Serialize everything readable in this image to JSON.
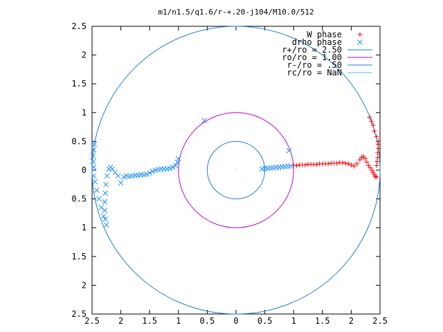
{
  "chart_data": {
    "type": "scatter",
    "title": "m1/n1.5/q1.6/r-+.20-j104/M10.0/512",
    "xlim": [
      -2.5,
      2.5
    ],
    "ylim": [
      -2.5,
      2.5
    ],
    "x_ticks": [
      -2.5,
      -2,
      -1.5,
      -1,
      -0.5,
      0,
      0.5,
      1,
      1.5,
      2,
      2.5
    ],
    "x_tick_labels": [
      "2.5",
      "2",
      "1.5",
      "1",
      "0.5",
      "0",
      "0.5",
      "1",
      "1.5",
      "2",
      "2.5"
    ],
    "y_ticks": [
      2.5,
      2,
      1.5,
      1,
      0.5,
      0,
      -0.5,
      -1,
      -1.5,
      -2,
      -2.5
    ],
    "y_tick_labels": [
      "2.5",
      "2",
      "1.5",
      "1",
      "0.5",
      "0",
      "0.5",
      "1",
      "1.5",
      "2",
      "2.5"
    ],
    "legend_position": "top-right",
    "series": [
      {
        "name": "W phase",
        "marker": "plus",
        "color": "#ff0000",
        "points": [
          [
            1.0,
            0.08
          ],
          [
            1.05,
            0.08
          ],
          [
            1.1,
            0.09
          ],
          [
            1.15,
            0.09
          ],
          [
            1.2,
            0.09
          ],
          [
            1.25,
            0.1
          ],
          [
            1.3,
            0.1
          ],
          [
            1.35,
            0.1
          ],
          [
            1.4,
            0.1
          ],
          [
            1.45,
            0.11
          ],
          [
            1.5,
            0.11
          ],
          [
            1.55,
            0.11
          ],
          [
            1.6,
            0.11
          ],
          [
            1.65,
            0.12
          ],
          [
            1.7,
            0.12
          ],
          [
            1.75,
            0.12
          ],
          [
            1.8,
            0.13
          ],
          [
            1.85,
            0.13
          ],
          [
            1.9,
            0.12
          ],
          [
            1.95,
            0.11
          ],
          [
            2.0,
            0.09
          ],
          [
            2.05,
            0.07
          ],
          [
            2.1,
            0.11
          ],
          [
            2.15,
            0.18
          ],
          [
            2.18,
            0.22
          ],
          [
            2.21,
            0.24
          ],
          [
            2.24,
            0.2
          ],
          [
            2.27,
            0.14
          ],
          [
            2.3,
            0.08
          ],
          [
            2.33,
            0.04
          ],
          [
            2.36,
            0.0
          ],
          [
            2.38,
            -0.04
          ],
          [
            2.4,
            -0.08
          ],
          [
            2.42,
            -0.11
          ],
          [
            2.44,
            -0.12
          ],
          [
            2.44,
            0.08
          ],
          [
            2.45,
            0.15
          ],
          [
            2.46,
            0.22
          ],
          [
            2.46,
            0.3
          ],
          [
            2.47,
            0.38
          ],
          [
            2.47,
            0.45
          ],
          [
            2.47,
            0.5
          ],
          [
            2.44,
            0.58
          ],
          [
            2.4,
            0.68
          ],
          [
            2.38,
            0.78
          ],
          [
            2.35,
            0.85
          ],
          [
            2.32,
            0.92
          ]
        ]
      },
      {
        "name": "drho phase",
        "marker": "cross",
        "color": "#1e90ff",
        "points": [
          [
            0.45,
            0.02
          ],
          [
            0.5,
            0.03
          ],
          [
            0.55,
            0.03
          ],
          [
            0.6,
            0.04
          ],
          [
            0.65,
            0.04
          ],
          [
            0.7,
            0.05
          ],
          [
            0.75,
            0.05
          ],
          [
            0.8,
            0.06
          ],
          [
            0.85,
            0.06
          ],
          [
            0.9,
            0.07
          ],
          [
            0.95,
            0.07
          ],
          [
            0.92,
            0.34
          ],
          [
            -0.55,
            0.86
          ],
          [
            -1.0,
            0.2
          ],
          [
            -1.02,
            0.14
          ],
          [
            -1.05,
            0.08
          ],
          [
            -1.1,
            0.05
          ],
          [
            -1.15,
            0.03
          ],
          [
            -1.2,
            0.02
          ],
          [
            -1.25,
            0.02
          ],
          [
            -1.3,
            0.02
          ],
          [
            -1.35,
            0.01
          ],
          [
            -1.4,
            0.0
          ],
          [
            -1.45,
            -0.02
          ],
          [
            -1.5,
            -0.05
          ],
          [
            -1.55,
            -0.07
          ],
          [
            -1.6,
            -0.08
          ],
          [
            -1.65,
            -0.08
          ],
          [
            -1.7,
            -0.09
          ],
          [
            -1.75,
            -0.09
          ],
          [
            -1.8,
            -0.1
          ],
          [
            -1.85,
            -0.11
          ],
          [
            -1.9,
            -0.1
          ],
          [
            -1.95,
            -0.12
          ],
          [
            -2.0,
            -0.22
          ],
          [
            -2.05,
            -0.1
          ],
          [
            -2.1,
            -0.04
          ],
          [
            -2.15,
            0.02
          ],
          [
            -2.18,
            0.05
          ],
          [
            -2.21,
            0.02
          ],
          [
            -2.24,
            -0.1
          ],
          [
            -2.26,
            -0.25
          ],
          [
            -2.27,
            -0.4
          ],
          [
            -2.28,
            -0.55
          ],
          [
            -2.28,
            -0.7
          ],
          [
            -2.27,
            -0.85
          ],
          [
            -2.25,
            -0.95
          ],
          [
            -2.3,
            -0.8
          ],
          [
            -2.34,
            -0.65
          ],
          [
            -2.38,
            -0.5
          ],
          [
            -2.42,
            -0.35
          ],
          [
            -2.45,
            -0.2
          ],
          [
            -2.47,
            -0.1
          ],
          [
            -2.47,
            0.05
          ],
          [
            -2.48,
            0.15
          ],
          [
            -2.48,
            0.25
          ],
          [
            -2.47,
            0.35
          ],
          [
            -2.46,
            0.45
          ]
        ]
      },
      {
        "name": "r+/ro = 2.50",
        "type": "circle",
        "radius": 2.5,
        "color": "#1e7fd0"
      },
      {
        "name": "ro/ro = 1.00",
        "type": "circle",
        "radius": 1.0,
        "color": "#c000c0"
      },
      {
        "name": "r-/ro = .50",
        "type": "circle",
        "radius": 0.5,
        "color": "#1e7fd0"
      },
      {
        "name": "rc/ro = NaN",
        "type": "circle",
        "radius": null,
        "color": "#40c0e0"
      }
    ]
  }
}
